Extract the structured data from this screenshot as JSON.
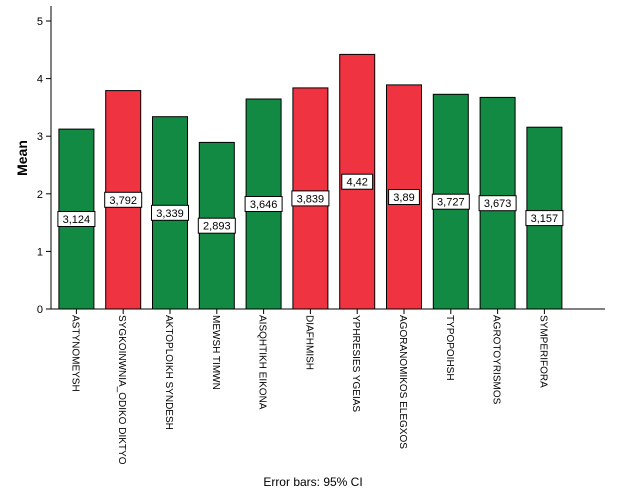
{
  "chart_data": {
    "type": "bar",
    "title": "",
    "ylabel": "Mean",
    "xlabel": "",
    "footnote": "Error bars: 95% CI",
    "ylim": [
      0,
      5
    ],
    "yticks": [
      "0",
      "1",
      "2",
      "3",
      "4",
      "5"
    ],
    "categories": [
      "ASTYNOMEYSH",
      "SYGKOINWNIA_ODIKO DIKTYO",
      "AKTOPLOIKH SYNDESH",
      "MEWSH TIMWN",
      "AISQHTIKH EIKONA",
      "DIAFHMISH",
      "YPHRESIES YGEIAS",
      "AGORANOMIKOS ELEGXOS",
      "TYPOPOIHSH",
      "AGROTOYRISMOS",
      "SYMPERIFORA"
    ],
    "values": [
      3.124,
      3.792,
      3.339,
      2.893,
      3.646,
      3.839,
      4.42,
      3.89,
      3.727,
      3.673,
      3.157
    ],
    "value_labels": [
      "3,124",
      "3,792",
      "3,339",
      "2,893",
      "3,646",
      "3,839",
      "4,42",
      "3,89",
      "3,727",
      "3,673",
      "3,157"
    ],
    "bar_colors": [
      "#138a43",
      "#ef3340",
      "#138a43",
      "#138a43",
      "#138a43",
      "#ef3340",
      "#ef3340",
      "#ef3340",
      "#138a43",
      "#138a43",
      "#138a43"
    ],
    "colors": {
      "green": "#138a43",
      "red": "#ef3340"
    },
    "grid": false,
    "legend": "none"
  }
}
